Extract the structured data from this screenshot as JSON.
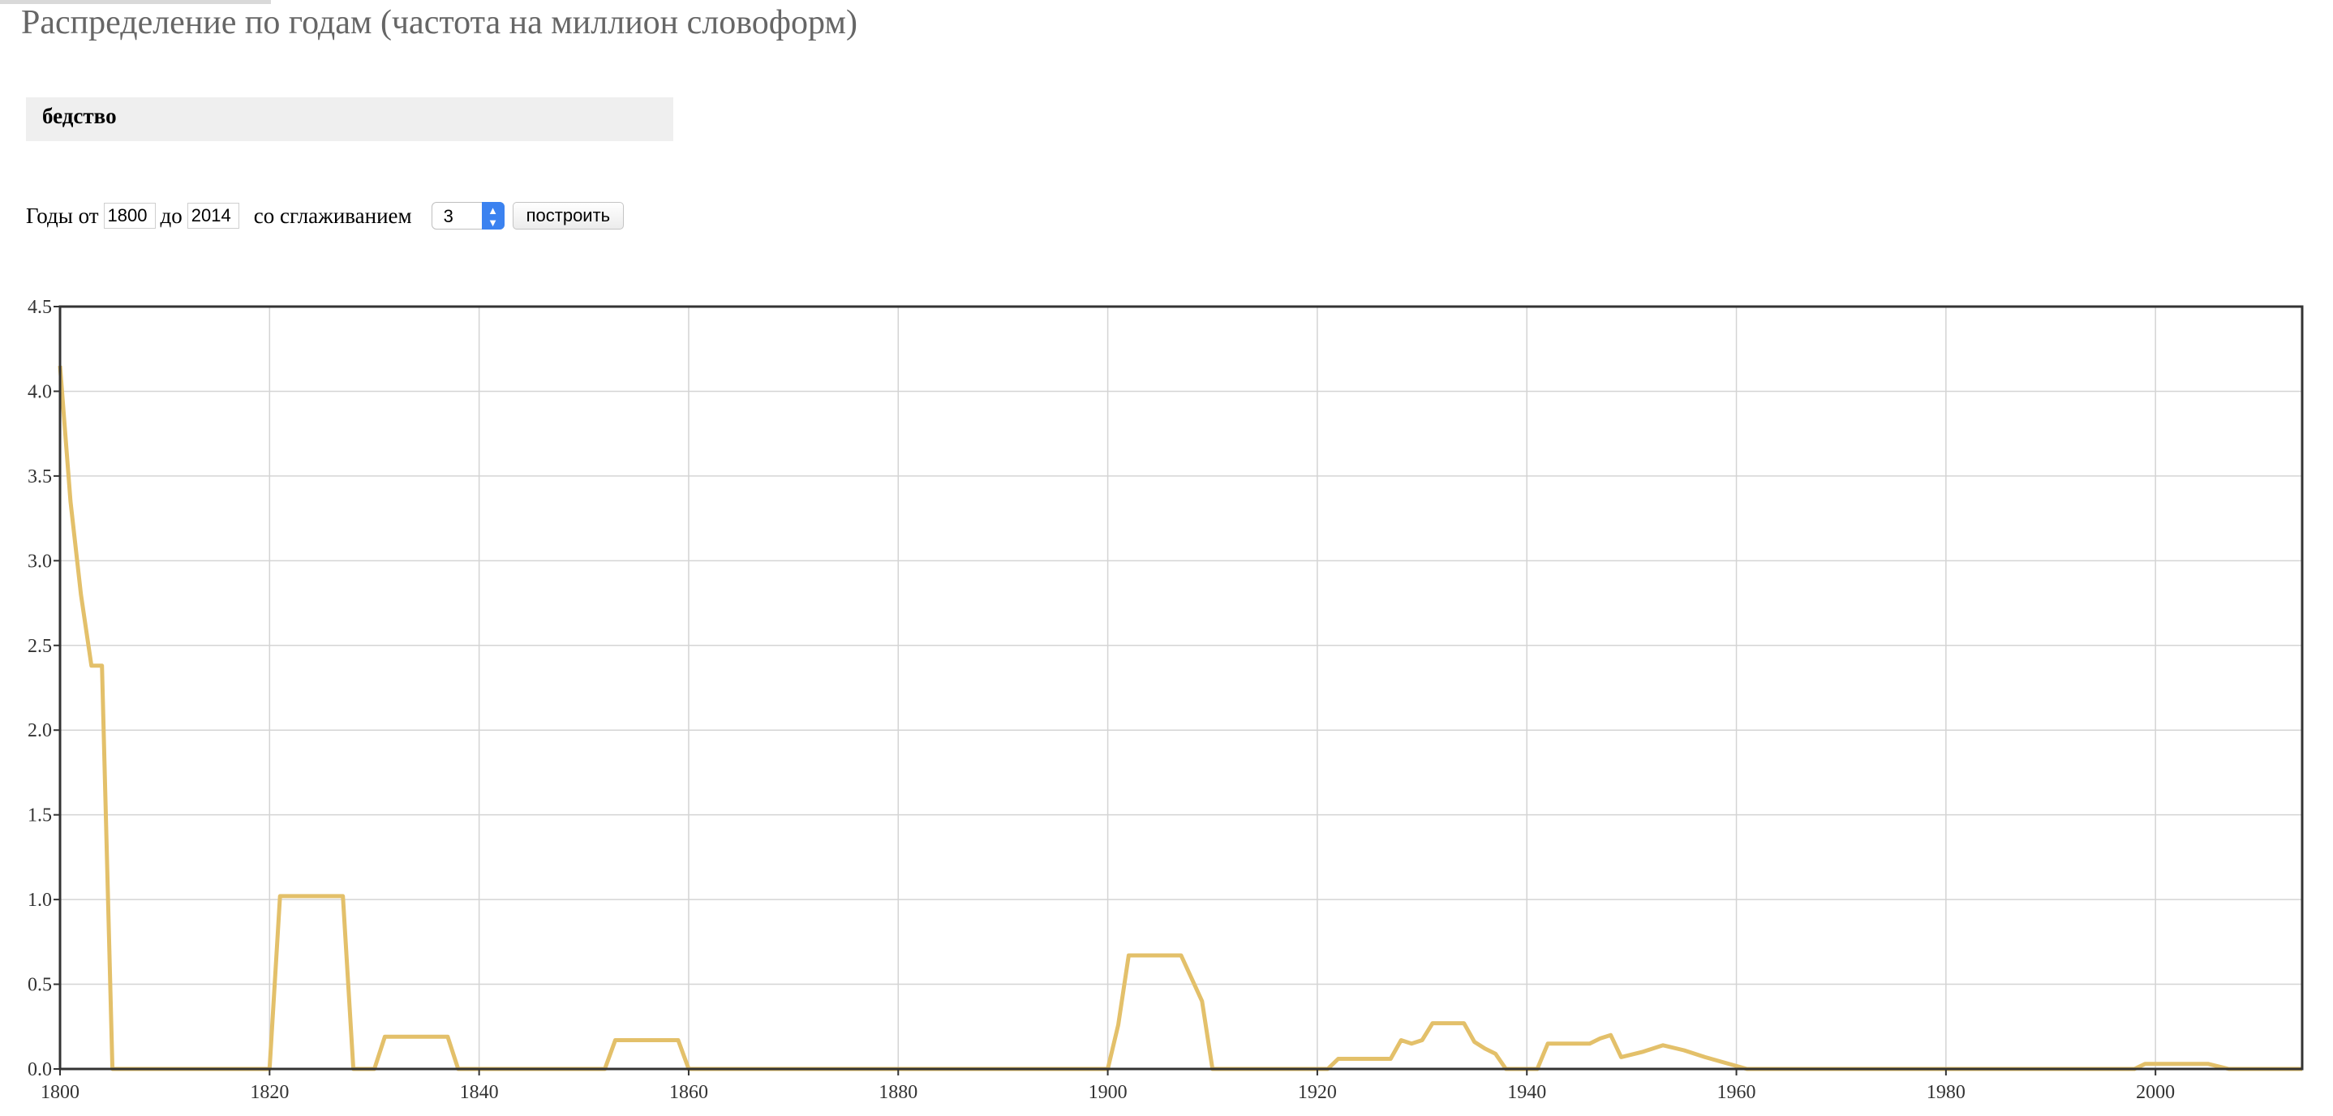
{
  "page": {
    "title": "Распределение по годам (частота на миллион словоформ)",
    "query": "бедство"
  },
  "controls": {
    "years_from_label": "Годы от",
    "year_from": "1800",
    "to_label": "до",
    "year_to": "2014",
    "smoothing_label": "со сглаживанием",
    "smoothing_value": "3",
    "build_button": "построить"
  },
  "colors": {
    "line": "#e3c06a",
    "grid": "#d4d4d4",
    "frame": "#333333"
  },
  "chart_data": {
    "type": "line",
    "xlim": [
      1800,
      2014
    ],
    "ylim": [
      0,
      4.5
    ],
    "x_ticks": [
      "1800",
      "1820",
      "1840",
      "1860",
      "1880",
      "1900",
      "1920",
      "1940",
      "1960",
      "1980",
      "2000"
    ],
    "y_ticks": [
      "0.0",
      "0.5",
      "1.0",
      "1.5",
      "2.0",
      "2.5",
      "3.0",
      "3.5",
      "4.0",
      "4.5"
    ],
    "grid": true,
    "series": [
      {
        "points": [
          [
            1800,
            4.15
          ],
          [
            1801,
            3.35
          ],
          [
            1802,
            2.8
          ],
          [
            1803,
            2.38
          ],
          [
            1804,
            2.38
          ],
          [
            1805,
            0.0
          ],
          [
            1820,
            0.0
          ],
          [
            1821,
            1.02
          ],
          [
            1827,
            1.02
          ],
          [
            1828,
            0.0
          ],
          [
            1830,
            0.0
          ],
          [
            1831,
            0.19
          ],
          [
            1837,
            0.19
          ],
          [
            1838,
            0.0
          ],
          [
            1852,
            0.0
          ],
          [
            1853,
            0.17
          ],
          [
            1859,
            0.17
          ],
          [
            1860,
            0.0
          ],
          [
            1900,
            0.0
          ],
          [
            1901,
            0.26
          ],
          [
            1902,
            0.67
          ],
          [
            1907,
            0.67
          ],
          [
            1909,
            0.4
          ],
          [
            1910,
            0.0
          ],
          [
            1921,
            0.0
          ],
          [
            1922,
            0.06
          ],
          [
            1927,
            0.06
          ],
          [
            1928,
            0.17
          ],
          [
            1929,
            0.15
          ],
          [
            1930,
            0.17
          ],
          [
            1931,
            0.27
          ],
          [
            1934,
            0.27
          ],
          [
            1935,
            0.16
          ],
          [
            1936,
            0.12
          ],
          [
            1937,
            0.09
          ],
          [
            1938,
            0.0
          ],
          [
            1941,
            0.0
          ],
          [
            1942,
            0.15
          ],
          [
            1946,
            0.15
          ],
          [
            1947,
            0.18
          ],
          [
            1948,
            0.2
          ],
          [
            1949,
            0.07
          ],
          [
            1951,
            0.1
          ],
          [
            1953,
            0.14
          ],
          [
            1955,
            0.11
          ],
          [
            1957,
            0.07
          ],
          [
            1961,
            0.0
          ],
          [
            1998,
            0.0
          ],
          [
            1999,
            0.03
          ],
          [
            2005,
            0.03
          ],
          [
            2007,
            0.0
          ],
          [
            2014,
            0.0
          ]
        ]
      }
    ]
  }
}
